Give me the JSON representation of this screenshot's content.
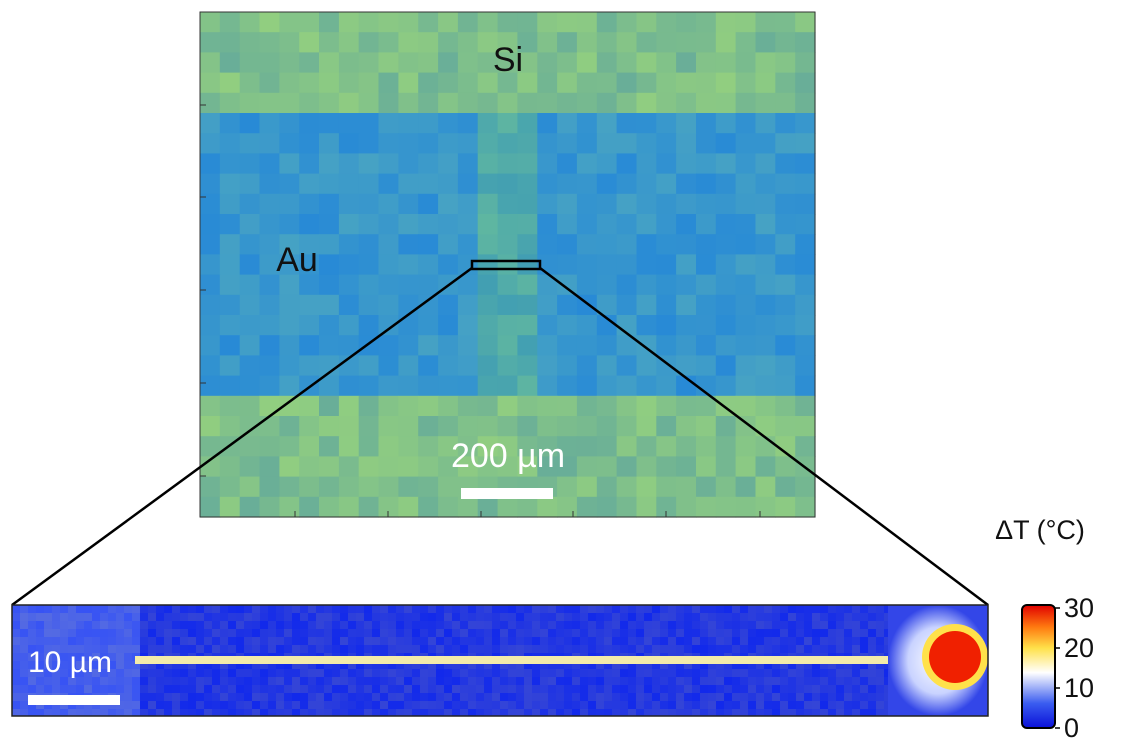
{
  "labels": {
    "top_material": "Si",
    "side_material": "Au",
    "scale_top": "200 µm",
    "scale_bottom": "10 µm"
  },
  "colorbar": {
    "title": "ΔT (°C)",
    "ylim": [
      0,
      30
    ],
    "yticks": [
      0,
      10,
      20,
      30
    ]
  }
}
